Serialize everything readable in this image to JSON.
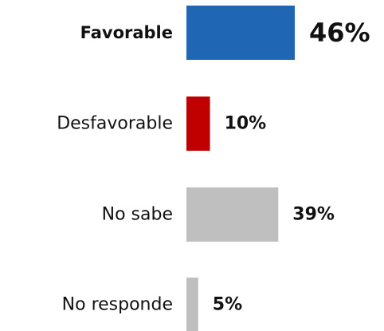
{
  "chart_data": {
    "type": "bar",
    "orientation": "horizontal",
    "categories": [
      "Favorable",
      "Desfavorable",
      "No sabe",
      "No responde"
    ],
    "values": [
      46,
      10,
      39,
      5
    ],
    "value_labels": [
      "46%",
      "10%",
      "39%",
      "5%"
    ],
    "colors": [
      "#1f67b5",
      "#c00000",
      "#bfbfbf",
      "#bfbfbf"
    ],
    "highlight_index": 0,
    "title": "",
    "xlabel": "",
    "ylabel": "",
    "xlim": [
      0,
      46
    ],
    "grid": false,
    "legend": "none"
  }
}
